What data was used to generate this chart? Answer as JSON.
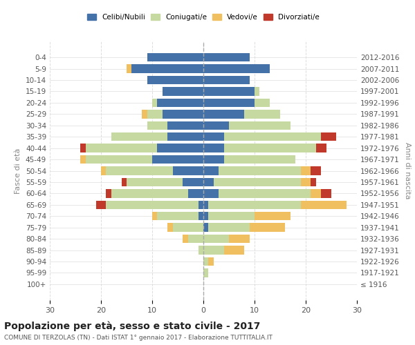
{
  "age_groups": [
    "100+",
    "95-99",
    "90-94",
    "85-89",
    "80-84",
    "75-79",
    "70-74",
    "65-69",
    "60-64",
    "55-59",
    "50-54",
    "45-49",
    "40-44",
    "35-39",
    "30-34",
    "25-29",
    "20-24",
    "15-19",
    "10-14",
    "5-9",
    "0-4"
  ],
  "birth_years": [
    "≤ 1916",
    "1917-1921",
    "1922-1926",
    "1927-1931",
    "1932-1936",
    "1937-1941",
    "1942-1946",
    "1947-1951",
    "1952-1956",
    "1957-1961",
    "1962-1966",
    "1967-1971",
    "1972-1976",
    "1977-1981",
    "1982-1986",
    "1987-1991",
    "1992-1996",
    "1997-2001",
    "2002-2006",
    "2007-2011",
    "2012-2016"
  ],
  "male": {
    "celibe": [
      0,
      0,
      0,
      0,
      0,
      0,
      1,
      1,
      3,
      4,
      6,
      10,
      9,
      7,
      7,
      8,
      9,
      8,
      11,
      14,
      11
    ],
    "coniugato": [
      0,
      0,
      0,
      1,
      3,
      6,
      8,
      18,
      15,
      11,
      13,
      13,
      14,
      11,
      4,
      3,
      1,
      0,
      0,
      0,
      0
    ],
    "vedovo": [
      0,
      0,
      0,
      0,
      1,
      1,
      1,
      0,
      0,
      0,
      1,
      1,
      0,
      0,
      0,
      1,
      0,
      0,
      0,
      1,
      0
    ],
    "divorziato": [
      0,
      0,
      0,
      0,
      0,
      0,
      0,
      2,
      1,
      1,
      0,
      0,
      1,
      0,
      0,
      0,
      0,
      0,
      0,
      0,
      0
    ]
  },
  "female": {
    "nubile": [
      0,
      0,
      0,
      0,
      0,
      1,
      1,
      1,
      3,
      2,
      3,
      4,
      4,
      4,
      5,
      8,
      10,
      10,
      9,
      13,
      9
    ],
    "coniugata": [
      0,
      1,
      1,
      4,
      5,
      8,
      9,
      18,
      18,
      17,
      16,
      14,
      18,
      19,
      12,
      7,
      3,
      1,
      0,
      0,
      0
    ],
    "vedova": [
      0,
      0,
      1,
      4,
      4,
      7,
      7,
      9,
      2,
      2,
      2,
      0,
      0,
      0,
      0,
      0,
      0,
      0,
      0,
      0,
      0
    ],
    "divorziata": [
      0,
      0,
      0,
      0,
      0,
      0,
      0,
      0,
      2,
      1,
      2,
      0,
      2,
      3,
      0,
      0,
      0,
      0,
      0,
      0,
      0
    ]
  },
  "colors": {
    "celibe": "#4472a8",
    "coniugato": "#c5d9a0",
    "vedovo": "#f0c060",
    "divorziato": "#c0392b"
  },
  "xlim": 30,
  "title": "Popolazione per età, sesso e stato civile - 2017",
  "subtitle": "COMUNE DI TERZOLAS (TN) - Dati ISTAT 1° gennaio 2017 - Elaborazione TUTTITALIA.IT",
  "ylabel_left": "Fasce di età",
  "ylabel_right": "Anni di nascita"
}
